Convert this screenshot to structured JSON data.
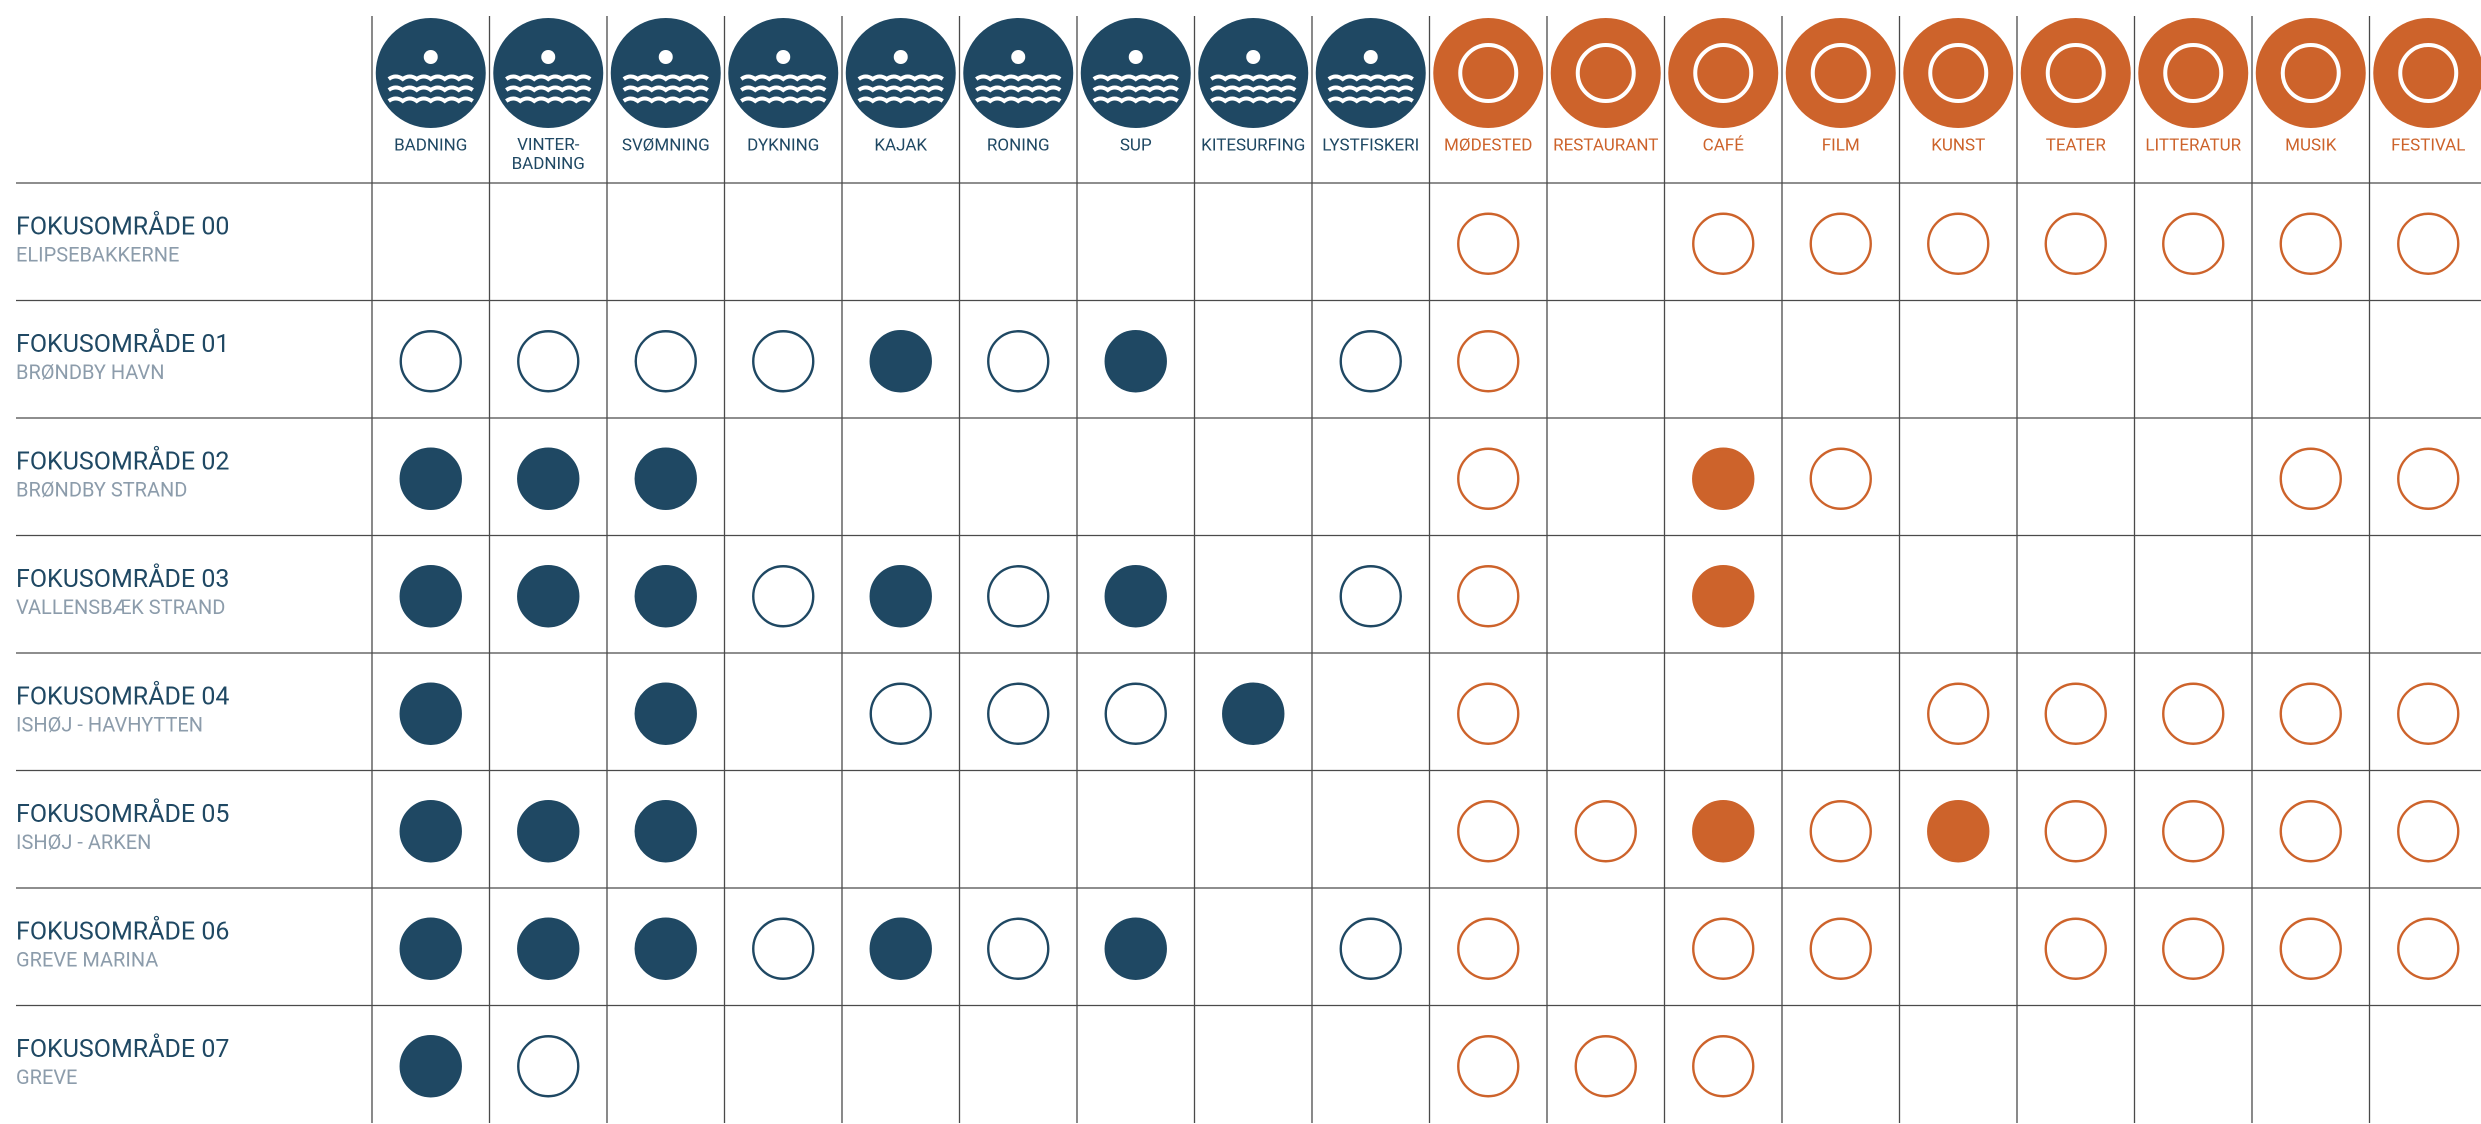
{
  "table": {
    "columns": [
      {
        "label": "BADNING",
        "group": "water"
      },
      {
        "label": "VINTER-\nBADNING",
        "group": "water"
      },
      {
        "label": "SVØMNING",
        "group": "water"
      },
      {
        "label": "DYKNING",
        "group": "water"
      },
      {
        "label": "KAJAK",
        "group": "water"
      },
      {
        "label": "RONING",
        "group": "water"
      },
      {
        "label": "SUP",
        "group": "water"
      },
      {
        "label": "KITESURFING",
        "group": "water"
      },
      {
        "label": "LYSTFISKERI",
        "group": "water"
      },
      {
        "label": "MØDESTED",
        "group": "culture"
      },
      {
        "label": "RESTAURANT",
        "group": "culture"
      },
      {
        "label": "CAFÉ",
        "group": "culture"
      },
      {
        "label": "FILM",
        "group": "culture"
      },
      {
        "label": "KUNST",
        "group": "culture"
      },
      {
        "label": "TEATER",
        "group": "culture"
      },
      {
        "label": "LITTERATUR",
        "group": "culture"
      },
      {
        "label": "MUSIK",
        "group": "culture"
      },
      {
        "label": "FESTIVAL",
        "group": "culture"
      }
    ],
    "group_colors": {
      "water": "#1f4863",
      "culture": "#cd632b"
    },
    "rows": [
      {
        "title": "FOKUSOMRÅDE 00",
        "subtitle": "ELIPSEBAKKERNE",
        "cells": [
          "none",
          "none",
          "none",
          "none",
          "none",
          "none",
          "none",
          "none",
          "none",
          "open",
          "none",
          "open",
          "open",
          "open",
          "open",
          "open",
          "open",
          "open"
        ]
      },
      {
        "title": "FOKUSOMRÅDE 01",
        "subtitle": "BRØNDBY HAVN",
        "cells": [
          "open",
          "open",
          "open",
          "open",
          "full",
          "open",
          "full",
          "none",
          "open",
          "open",
          "none",
          "none",
          "none",
          "none",
          "none",
          "none",
          "none",
          "none"
        ]
      },
      {
        "title": "FOKUSOMRÅDE 02",
        "subtitle": "BRØNDBY STRAND",
        "cells": [
          "full",
          "full",
          "full",
          "none",
          "none",
          "none",
          "none",
          "none",
          "none",
          "open",
          "none",
          "full",
          "open",
          "none",
          "none",
          "none",
          "open",
          "open"
        ]
      },
      {
        "title": "FOKUSOMRÅDE 03",
        "subtitle": "VALLENSBÆK STRAND",
        "cells": [
          "full",
          "full",
          "full",
          "open",
          "full",
          "open",
          "full",
          "none",
          "open",
          "open",
          "none",
          "full",
          "none",
          "none",
          "none",
          "none",
          "none",
          "none"
        ]
      },
      {
        "title": "FOKUSOMRÅDE 04",
        "subtitle": "ISHØJ - HAVHYTTEN",
        "cells": [
          "full",
          "none",
          "full",
          "none",
          "open",
          "open",
          "open",
          "full",
          "none",
          "open",
          "none",
          "none",
          "none",
          "open",
          "open",
          "open",
          "open",
          "open"
        ]
      },
      {
        "title": "FOKUSOMRÅDE 05",
        "subtitle": "ISHØJ - ARKEN",
        "cells": [
          "full",
          "full",
          "full",
          "none",
          "none",
          "none",
          "none",
          "none",
          "none",
          "open",
          "open",
          "full",
          "open",
          "full",
          "open",
          "open",
          "open",
          "open"
        ]
      },
      {
        "title": "FOKUSOMRÅDE 06",
        "subtitle": "GREVE MARINA",
        "cells": [
          "full",
          "full",
          "full",
          "open",
          "full",
          "open",
          "full",
          "none",
          "open",
          "open",
          "none",
          "open",
          "open",
          "none",
          "open",
          "open",
          "open",
          "open"
        ]
      },
      {
        "title": "FOKUSOMRÅDE 07",
        "subtitle": "GREVE",
        "cells": [
          "full",
          "open",
          "none",
          "none",
          "none",
          "none",
          "none",
          "none",
          "none",
          "open",
          "open",
          "open",
          "none",
          "none",
          "none",
          "none",
          "none",
          "none"
        ]
      }
    ]
  }
}
